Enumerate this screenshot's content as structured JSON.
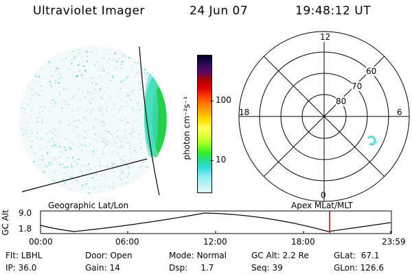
{
  "header": {
    "instrument": "Ultraviolet Imager",
    "date": "24 Jun 07",
    "time": "19:48:12 UT"
  },
  "colorbar": {
    "unit_label": "photon cm⁻²s⁻¹",
    "ticks": [
      "100",
      "10"
    ],
    "colors": [
      "#000022",
      "#2a0a55",
      "#5a0a66",
      "#b00000",
      "#e00000",
      "#ff3300",
      "#ff7700",
      "#ffaa00",
      "#ffdd00",
      "#ffff55",
      "#ddff33",
      "#99ff22",
      "#33ee22",
      "#22dd88",
      "#33dddd",
      "#88eeee",
      "#bbf3f3",
      "#dff8f8"
    ]
  },
  "polar_plot": {
    "mlt_labels": {
      "top": "12",
      "left": "18",
      "right": "6",
      "bottom": "0"
    },
    "lat_labels": [
      "60",
      "70",
      "80"
    ]
  },
  "timeline": {
    "left_title": "Geographic Lat/Lon",
    "right_title": "Apex  MLat/MLT",
    "axis_label": "GC Alt",
    "y_max": "9.0",
    "y_min": "1.8",
    "x_ticks": [
      "00:00",
      "06:00",
      "12:00",
      "18:00",
      "23:59"
    ],
    "current_marker_color": "#dd0000"
  },
  "info": {
    "flt_label": "Flt:",
    "flt_value": "LBHL",
    "ip_label": "IP:",
    "ip_value": "36.0",
    "door_label": "Door:",
    "door_value": "Open",
    "gain_label": "Gain:",
    "gain_value": "14",
    "mode_label": "Mode:",
    "mode_value": "Normal",
    "dsp_label": "Dsp:",
    "dsp_value": "1.7",
    "gcalt_label": "GC Alt:",
    "gcalt_value": "2.2 Re",
    "seq_label": "Seq:",
    "seq_value": "39",
    "glat_label": "GLat:",
    "glat_value": "67.1",
    "glon_label": "GLon:",
    "glon_value": "126.6"
  }
}
